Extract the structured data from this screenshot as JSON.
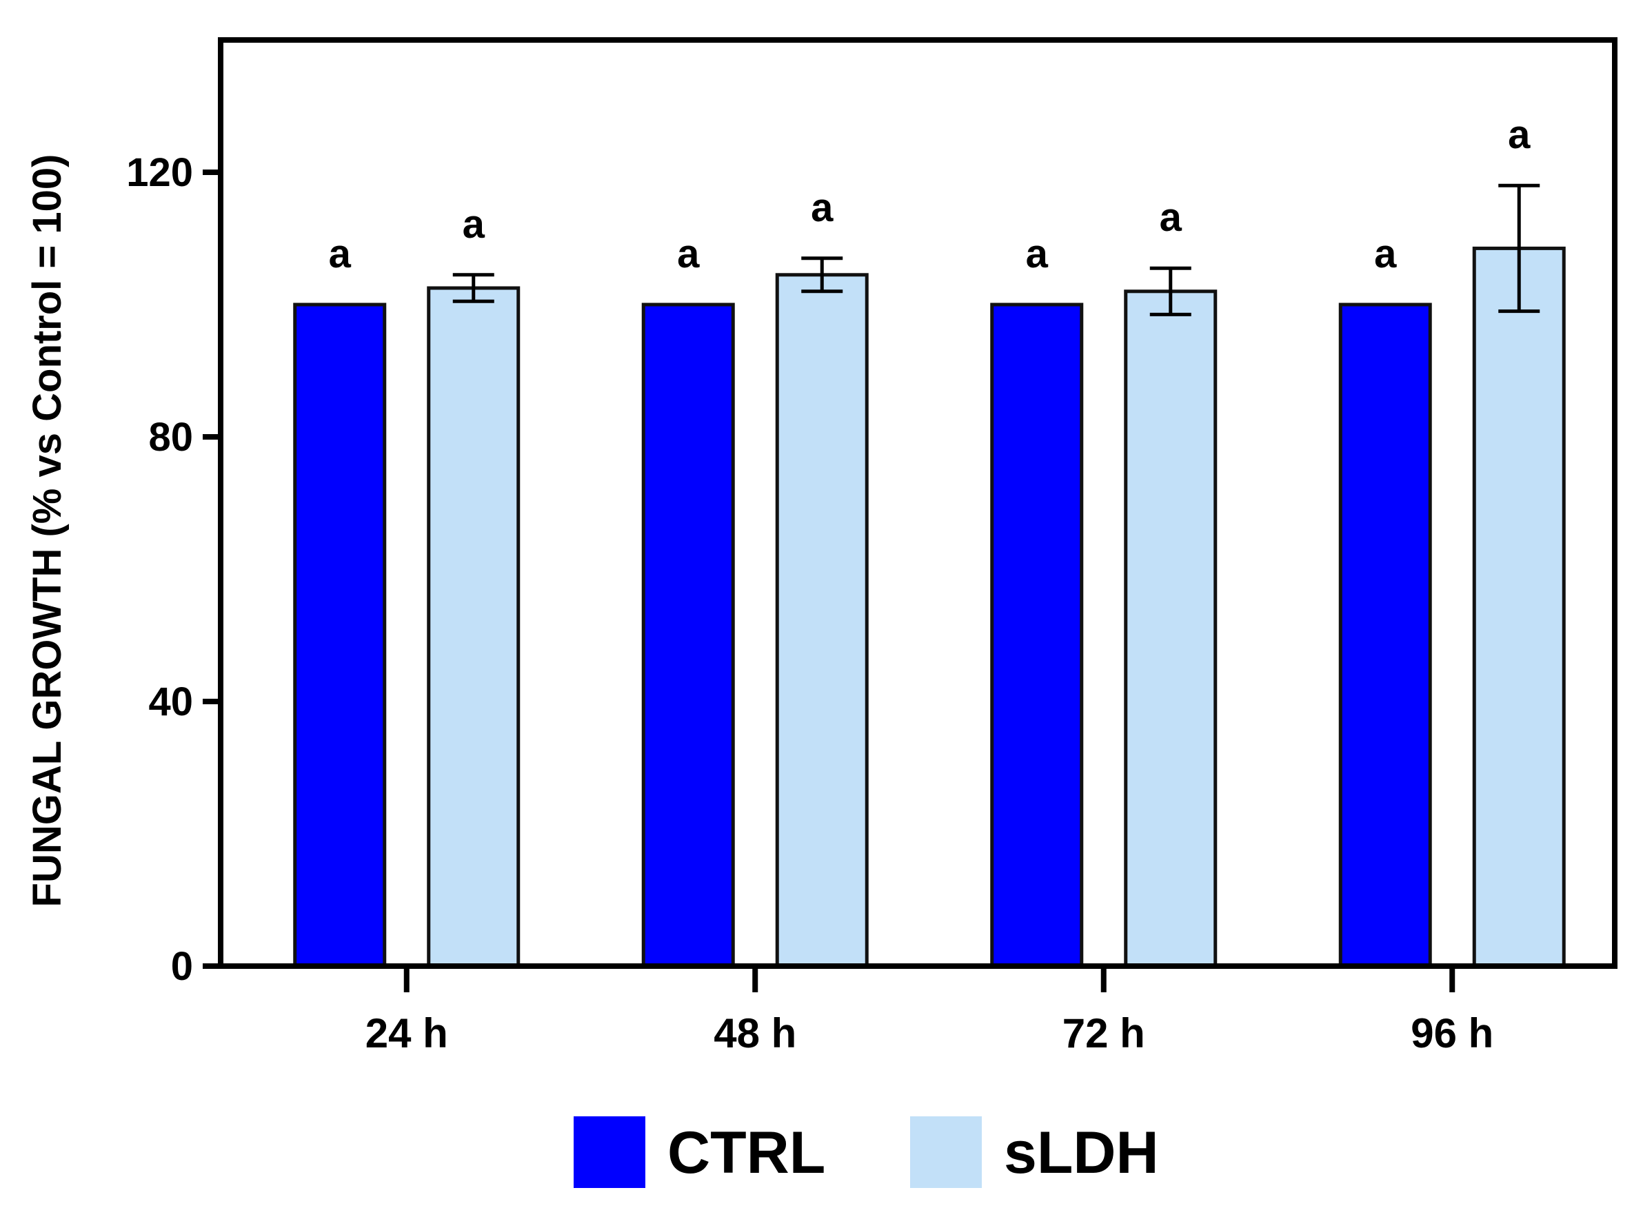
{
  "chart_data": {
    "type": "bar",
    "title": "",
    "xlabel": "",
    "ylabel": "FUNGAL GROWTH (% vs Control =  100)",
    "ylim": [
      0,
      140
    ],
    "yticks": [
      0,
      40,
      80,
      120
    ],
    "categories": [
      "24 h",
      "48  h",
      "72 h",
      "96 h"
    ],
    "series": [
      {
        "name": "CTRL",
        "color": "#0000ff",
        "values": [
          100,
          100,
          100,
          100
        ],
        "errors": [
          0,
          0,
          0,
          0
        ],
        "annotations": [
          "a",
          "a",
          "a",
          "a"
        ]
      },
      {
        "name": "sLDH",
        "color": "#c2e0f8",
        "values": [
          102.5,
          104.5,
          102,
          108.5
        ],
        "errors": [
          2,
          2.5,
          3.5,
          9.5
        ],
        "annotations": [
          "a",
          "a",
          "a",
          "a"
        ]
      }
    ],
    "legend_position": "bottom-center",
    "grid": false
  }
}
